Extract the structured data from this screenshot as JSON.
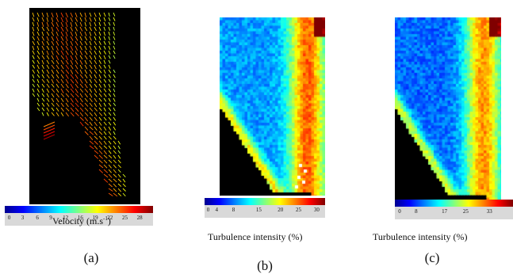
{
  "figure": {
    "panels": [
      {
        "id": "a",
        "label": "(a)",
        "quantity": "velocity-vectors",
        "colorbar": {
          "title_main": "Velocity  (m.s",
          "title_sup": "-1",
          "title_end": ")",
          "ticks": [
            "0",
            "3",
            "6",
            "9",
            "12",
            "16",
            "19",
            "22",
            "25",
            "28"
          ]
        }
      },
      {
        "id": "b",
        "label": "(b)",
        "quantity": "turbulence-intensity-map",
        "colorbar": {
          "title": "Turbulence intensity (%)",
          "ticks": [
            "0",
            "4",
            "8",
            "15",
            "20",
            "25",
            "30"
          ]
        }
      },
      {
        "id": "c",
        "label": "(c)",
        "quantity": "turbulence-intensity-map",
        "colorbar": {
          "title": "Turbulence intensity (%)",
          "ticks": [
            "0",
            "8",
            "17",
            "25",
            "33"
          ]
        }
      }
    ],
    "colormap": "jet"
  }
}
